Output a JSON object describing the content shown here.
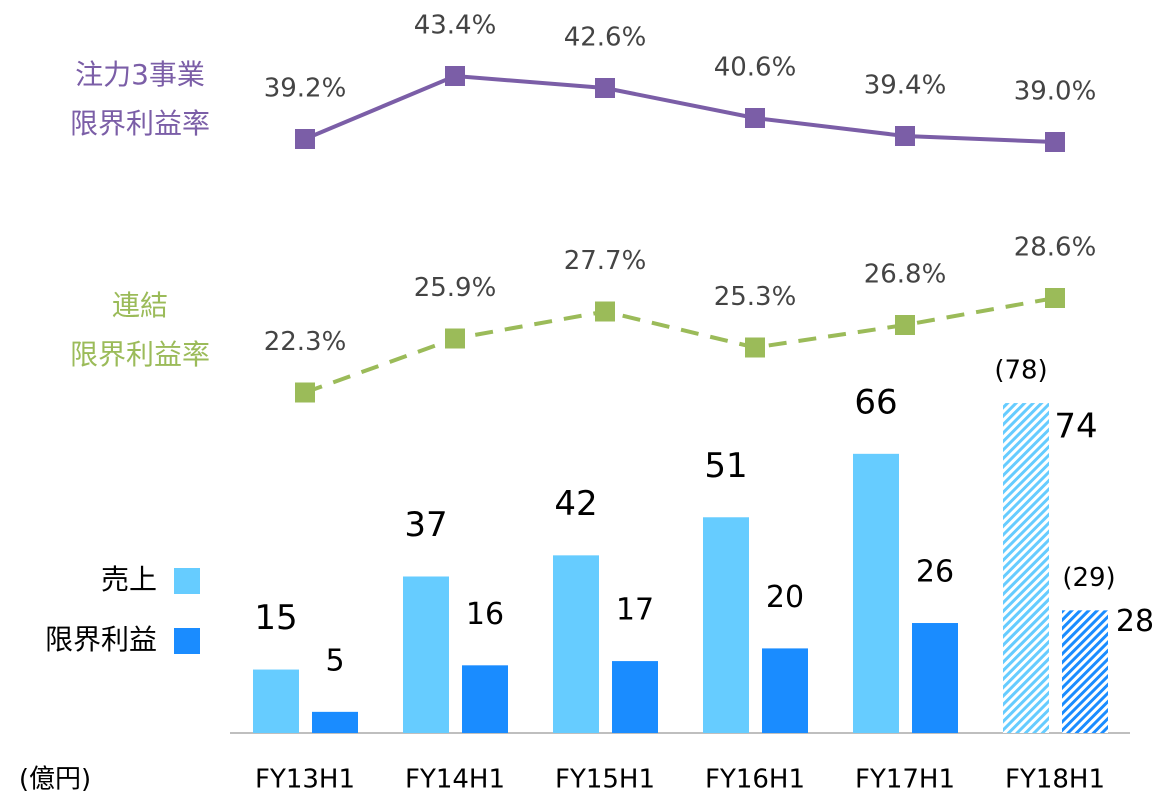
{
  "chart_data": {
    "type": "combo",
    "unit_label": "(億円)",
    "categories": [
      "FY13H1",
      "FY14H1",
      "FY15H1",
      "FY16H1",
      "FY17H1",
      "FY18H1"
    ],
    "ylim": [
      0,
      100
    ],
    "y2lim": [
      20,
      45
    ],
    "series": [
      {
        "name": "売上",
        "type": "bar",
        "color": "#66ccff",
        "values": [
          15,
          37,
          42,
          51,
          66,
          74
        ]
      },
      {
        "name": "限界利益",
        "type": "bar",
        "color": "#1a8cff",
        "values": [
          5,
          16,
          17,
          20,
          26,
          28
        ]
      },
      {
        "type": "overlay",
        "overlay_of": 0,
        "color": "#66ccff",
        "values": [
          null,
          null,
          null,
          null,
          null,
          78
        ],
        "value_labels": [
          null,
          null,
          null,
          null,
          null,
          "(78)"
        ]
      },
      {
        "type": "overlay",
        "overlay_of": 1,
        "color": "#1a8cff",
        "values": [
          null,
          null,
          null,
          null,
          null,
          29
        ],
        "value_labels": [
          null,
          null,
          null,
          null,
          null,
          "(29)"
        ]
      },
      {
        "name": [
          "注力3事業",
          "限界利益率"
        ],
        "type": "line",
        "axis": "y2",
        "style": "solid",
        "color": "#7b5ea7",
        "values": [
          39.2,
          43.4,
          42.6,
          40.6,
          39.4,
          39.0
        ],
        "value_labels": [
          "39.2%",
          "43.4%",
          "42.6%",
          "40.6%",
          "39.4%",
          "39.0%"
        ]
      },
      {
        "name": [
          "連結",
          "限界利益率"
        ],
        "type": "line",
        "axis": "y2",
        "style": "dashed",
        "color": "#9bbb59",
        "values": [
          22.3,
          25.9,
          27.7,
          25.3,
          26.8,
          28.6
        ],
        "value_labels": [
          "22.3%",
          "25.9%",
          "27.7%",
          "25.3%",
          "26.8%",
          "28.6%"
        ]
      }
    ]
  }
}
